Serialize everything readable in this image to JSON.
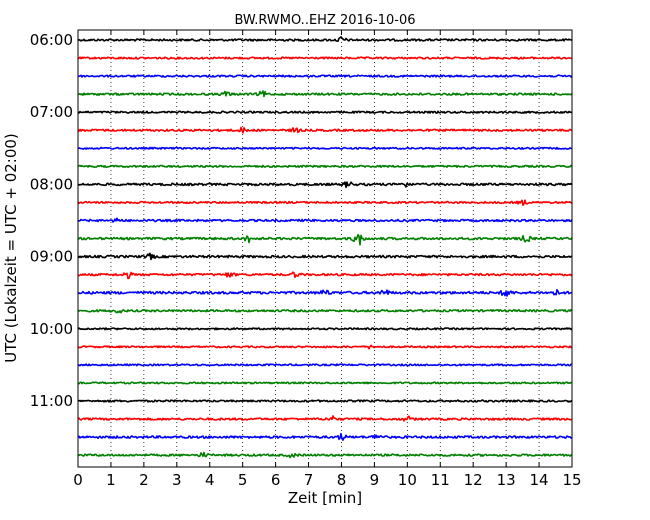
{
  "chart_data": {
    "type": "line",
    "title": "BW.RWMO..EHZ 2016-10-06",
    "xlabel": "Zeit  [min]",
    "ylabel": "UTC (Lokalzeit = UTC + 02:00)",
    "xlim": [
      0,
      15
    ],
    "x_ticks": [
      "0",
      "1",
      "2",
      "3",
      "4",
      "5",
      "6",
      "7",
      "8",
      "9",
      "10",
      "11",
      "12",
      "13",
      "14",
      "15"
    ],
    "y_ticks": [
      "06:00",
      "07:00",
      "08:00",
      "09:00",
      "10:00",
      "11:00"
    ],
    "grid": "vertical dotted",
    "trace_colors": [
      "#000000",
      "#ff0000",
      "#0000ff",
      "#008000"
    ],
    "trace_minutes_per_line": 15,
    "traces": [
      {
        "start": "06:00",
        "amplitude": 0.2,
        "events": [
          [
            8.0,
            0.55
          ]
        ]
      },
      {
        "start": "06:15",
        "amplitude": 0.18,
        "events": []
      },
      {
        "start": "06:30",
        "amplitude": 0.18,
        "events": []
      },
      {
        "start": "06:45",
        "amplitude": 0.2,
        "events": [
          [
            4.5,
            0.45
          ],
          [
            5.6,
            0.5
          ]
        ]
      },
      {
        "start": "07:00",
        "amplitude": 0.18,
        "events": []
      },
      {
        "start": "07:15",
        "amplitude": 0.2,
        "events": [
          [
            5.0,
            0.45
          ],
          [
            6.6,
            0.45
          ]
        ]
      },
      {
        "start": "07:30",
        "amplitude": 0.16,
        "events": []
      },
      {
        "start": "07:45",
        "amplitude": 0.18,
        "events": []
      },
      {
        "start": "08:00",
        "amplitude": 0.22,
        "events": [
          [
            8.2,
            0.5
          ],
          [
            9.9,
            0.45
          ]
        ]
      },
      {
        "start": "08:15",
        "amplitude": 0.18,
        "events": [
          [
            13.5,
            0.45
          ]
        ]
      },
      {
        "start": "08:30",
        "amplitude": 0.2,
        "events": [
          [
            1.2,
            0.4
          ]
        ]
      },
      {
        "start": "08:45",
        "amplitude": 0.22,
        "events": [
          [
            5.2,
            0.7
          ],
          [
            8.5,
            1.5
          ],
          [
            13.6,
            0.65
          ]
        ]
      },
      {
        "start": "09:00",
        "amplitude": 0.22,
        "events": [
          [
            2.2,
            0.45
          ]
        ]
      },
      {
        "start": "09:15",
        "amplitude": 0.2,
        "events": [
          [
            1.5,
            0.6
          ],
          [
            4.6,
            0.45
          ],
          [
            6.6,
            0.45
          ]
        ]
      },
      {
        "start": "09:30",
        "amplitude": 0.24,
        "events": [
          [
            7.5,
            0.55
          ],
          [
            9.3,
            0.55
          ],
          [
            13.0,
            0.9
          ],
          [
            14.5,
            0.45
          ]
        ]
      },
      {
        "start": "09:45",
        "amplitude": 0.2,
        "events": [
          [
            1.2,
            0.4
          ]
        ]
      },
      {
        "start": "10:00",
        "amplitude": 0.16,
        "events": []
      },
      {
        "start": "10:15",
        "amplitude": 0.16,
        "events": [
          [
            8.9,
            0.3
          ]
        ]
      },
      {
        "start": "10:30",
        "amplitude": 0.16,
        "events": []
      },
      {
        "start": "10:45",
        "amplitude": 0.16,
        "events": []
      },
      {
        "start": "11:00",
        "amplitude": 0.18,
        "events": []
      },
      {
        "start": "11:15",
        "amplitude": 0.2,
        "events": [
          [
            7.7,
            0.55
          ],
          [
            10.0,
            0.45
          ]
        ]
      },
      {
        "start": "11:30",
        "amplitude": 0.22,
        "events": [
          [
            8.0,
            0.55
          ],
          [
            9.1,
            0.5
          ]
        ]
      },
      {
        "start": "11:45",
        "amplitude": 0.2,
        "events": [
          [
            3.8,
            0.4
          ],
          [
            6.5,
            0.35
          ]
        ]
      }
    ]
  }
}
